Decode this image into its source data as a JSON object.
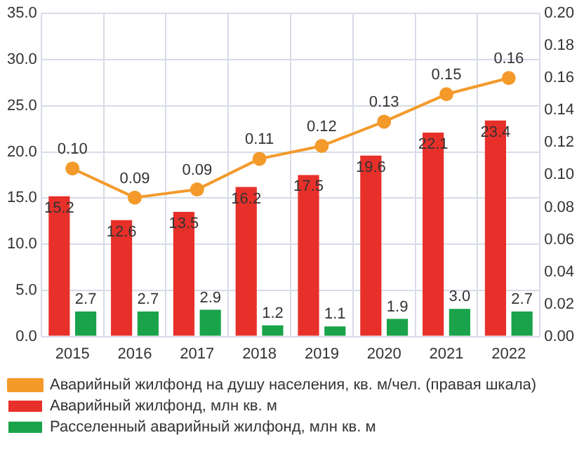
{
  "chart_data": {
    "type": "bar",
    "categories": [
      "2015",
      "2016",
      "2017",
      "2018",
      "2019",
      "2020",
      "2021",
      "2022"
    ],
    "series": [
      {
        "name": "Аварийный жилфонд, млн кв. м",
        "color": "#e8302a",
        "values": [
          15.2,
          12.6,
          13.5,
          16.2,
          17.5,
          19.6,
          22.1,
          23.4
        ],
        "value_labels": [
          "15.2",
          "12.6",
          "13.5",
          "16.2",
          "17.5",
          "19.6",
          "22.1",
          "23.4"
        ]
      },
      {
        "name": "Расселенный аварийный жилфонд, млн кв. м",
        "color": "#1aa34a",
        "values": [
          2.7,
          2.7,
          2.9,
          1.2,
          1.1,
          1.9,
          3.0,
          2.7
        ],
        "value_labels": [
          "2.7",
          "2.7",
          "2.9",
          "1.2",
          "1.1",
          "1.9",
          "3.0",
          "2.7"
        ]
      },
      {
        "name": "Аварийный жилфонд на душу населения, кв. м/чел. (правая шкала)",
        "type": "line",
        "axis": "y2",
        "color": "#f39a2b",
        "values": [
          0.104,
          0.086,
          0.091,
          0.11,
          0.118,
          0.133,
          0.15,
          0.16
        ],
        "value_labels": [
          "0.10",
          "0.09",
          "0.09",
          "0.11",
          "0.12",
          "0.13",
          "0.15",
          "0.16"
        ]
      }
    ],
    "ylim": [
      0,
      35
    ],
    "yticks": [
      {
        "value": 0,
        "label": "0.0"
      },
      {
        "value": 5,
        "label": "5.0"
      },
      {
        "value": 10,
        "label": "10.0"
      },
      {
        "value": 15,
        "label": "15.0"
      },
      {
        "value": 20,
        "label": "20.0"
      },
      {
        "value": 25,
        "label": "25.0"
      },
      {
        "value": 30,
        "label": "30.0"
      },
      {
        "value": 35,
        "label": "35.0"
      }
    ],
    "y2lim": [
      0,
      0.2
    ],
    "y2ticks": [
      {
        "value": 0,
        "label": "0.00"
      },
      {
        "value": 0.02,
        "label": "0.02"
      },
      {
        "value": 0.04,
        "label": "0.04"
      },
      {
        "value": 0.06,
        "label": "0.06"
      },
      {
        "value": 0.08,
        "label": "0.08"
      },
      {
        "value": 0.1,
        "label": "0.10"
      },
      {
        "value": 0.12,
        "label": "0.12"
      },
      {
        "value": 0.14,
        "label": "0.14"
      },
      {
        "value": 0.16,
        "label": "0.16"
      },
      {
        "value": 0.18,
        "label": "0.18"
      },
      {
        "value": 0.2,
        "label": "0.20"
      }
    ],
    "grid": true,
    "legend": "bottom",
    "marker": "circle",
    "line_style": "solid"
  }
}
